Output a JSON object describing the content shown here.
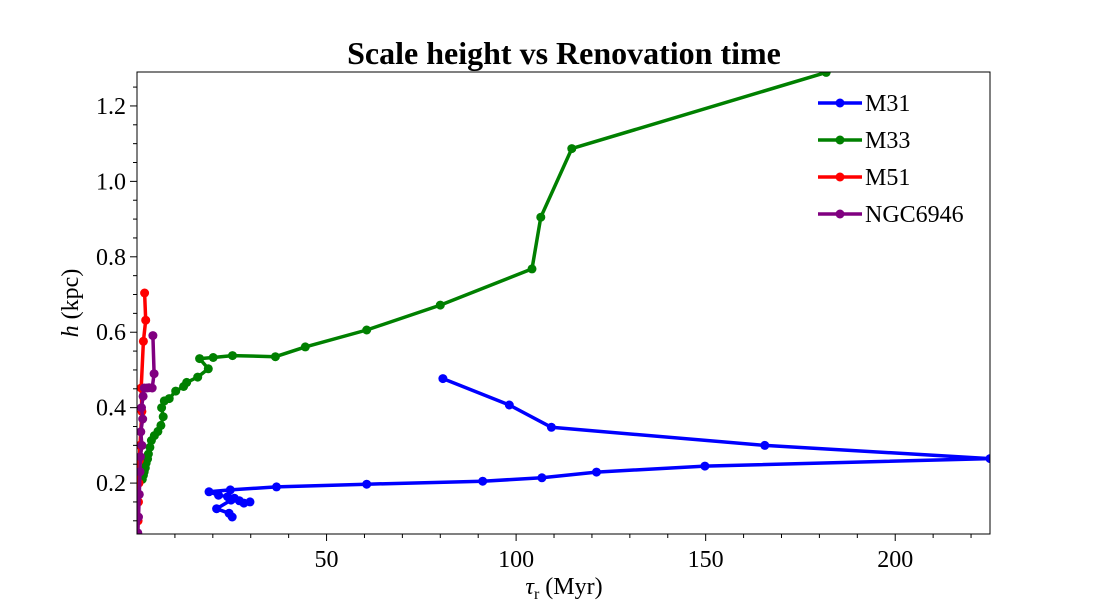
{
  "chart_data": {
    "type": "line",
    "title": "Scale height vs Renovation time",
    "xlabel_symbol": "τ",
    "xlabel_sub": "r",
    "xlabel_rest": " (Myr)",
    "ylabel_symbol": "h",
    "ylabel_rest": " (kpc)",
    "xlim": [
      0,
      225
    ],
    "ylim": [
      0.065,
      1.29
    ],
    "xticks": [
      50,
      100,
      150,
      200
    ],
    "xtick_labels": [
      "50",
      "100",
      "150",
      "200"
    ],
    "yticks": [
      0.2,
      0.4,
      0.6,
      0.8,
      1.0,
      1.2
    ],
    "ytick_labels": [
      "0.2",
      "0.4",
      "0.6",
      "0.8",
      "1.0",
      "1.2"
    ],
    "legend_position": "top-right",
    "series": [
      {
        "name": "M31",
        "color": "#0000ff",
        "x": [
          80.7,
          98.2,
          109.3,
          165.6,
          225.0,
          149.8,
          121.2,
          106.8,
          91.2,
          60.6,
          36.8,
          24.6,
          19.0,
          21.5,
          23.9,
          25.7,
          28.2,
          29.8,
          27.0,
          24.8,
          21.0,
          24.3,
          25.1
        ],
        "y": [
          0.477,
          0.407,
          0.348,
          0.3,
          0.265,
          0.245,
          0.229,
          0.214,
          0.205,
          0.197,
          0.19,
          0.182,
          0.177,
          0.168,
          0.164,
          0.16,
          0.147,
          0.15,
          0.153,
          0.155,
          0.132,
          0.12,
          0.11
        ]
      },
      {
        "name": "M33",
        "color": "#008000",
        "x": [
          181.8,
          114.7,
          106.5,
          104.2,
          80.0,
          60.6,
          44.4,
          36.5,
          25.2,
          20.1,
          16.5,
          18.8,
          16.0,
          13.1,
          12.3,
          10.2,
          8.5,
          7.2,
          6.5,
          6.9,
          6.3,
          5.5,
          4.6,
          3.8,
          3.4,
          3.0,
          2.8,
          2.4,
          2.2,
          1.9,
          1.7,
          1.4
        ],
        "y": [
          1.289,
          1.087,
          0.905,
          0.768,
          0.672,
          0.606,
          0.561,
          0.535,
          0.538,
          0.533,
          0.53,
          0.503,
          0.481,
          0.467,
          0.456,
          0.444,
          0.424,
          0.418,
          0.4,
          0.376,
          0.353,
          0.337,
          0.326,
          0.313,
          0.295,
          0.277,
          0.264,
          0.253,
          0.24,
          0.23,
          0.221,
          0.21
        ]
      },
      {
        "name": "M51",
        "color": "#ff0000",
        "x": [
          2.0,
          2.3,
          1.7,
          1.1,
          1.3,
          0.8,
          0.6,
          0.5,
          0.4,
          0.3
        ],
        "y": [
          0.704,
          0.632,
          0.576,
          0.452,
          0.39,
          0.3,
          0.26,
          0.2,
          0.15,
          0.1
        ]
      },
      {
        "name": "NGC6946",
        "color": "#800080",
        "x": [
          4.2,
          4.5,
          4.0,
          3.2,
          2.6,
          1.9,
          1.6,
          1.2,
          1.5,
          1.0,
          1.3,
          0.9,
          0.8,
          0.6,
          0.4,
          0.2
        ],
        "y": [
          0.591,
          0.49,
          0.452,
          0.453,
          0.452,
          0.452,
          0.43,
          0.4,
          0.37,
          0.336,
          0.3,
          0.27,
          0.23,
          0.17,
          0.11,
          0.068
        ]
      }
    ]
  }
}
